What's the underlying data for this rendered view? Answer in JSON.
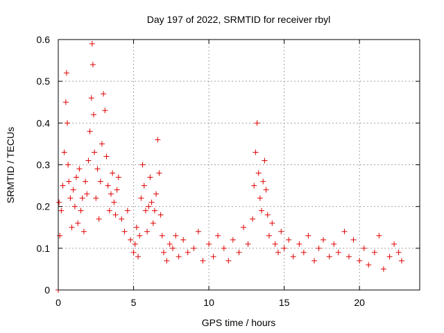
{
  "chart_data": {
    "type": "scatter",
    "title": "Day 197 of 2022, SRMTID for receiver rbyl",
    "xlabel": "GPS time / hours",
    "ylabel": "SRMTID / TECUs",
    "xlim": [
      0,
      24
    ],
    "ylim": [
      0,
      0.6
    ],
    "x_ticks": [
      0,
      5,
      10,
      15,
      20
    ],
    "y_ticks": [
      0,
      0.1,
      0.2,
      0.3,
      0.4,
      0.5,
      0.6
    ],
    "x_tick_labels": [
      "0",
      "5",
      "10",
      "15",
      "20"
    ],
    "y_tick_labels": [
      "0",
      "0.1",
      "0.2",
      "0.3",
      "0.4",
      "0.5",
      "0.6"
    ],
    "grid": true,
    "marker": "+",
    "colors": {
      "series": "#e00000",
      "grid": "#a0a0a0",
      "axis": "#000000"
    },
    "series": [
      {
        "name": "SRMTID",
        "x": [
          0.0,
          0.05,
          0.1,
          0.2,
          0.3,
          0.4,
          0.5,
          0.55,
          0.6,
          0.65,
          0.7,
          0.8,
          0.9,
          1.0,
          1.1,
          1.2,
          1.3,
          1.4,
          1.5,
          1.6,
          1.7,
          1.8,
          1.9,
          2.0,
          2.1,
          2.2,
          2.25,
          2.3,
          2.35,
          2.4,
          2.5,
          2.6,
          2.7,
          2.8,
          2.9,
          3.0,
          3.1,
          3.2,
          3.3,
          3.4,
          3.5,
          3.6,
          3.7,
          3.8,
          3.9,
          4.0,
          4.2,
          4.4,
          4.6,
          4.8,
          5.0,
          5.1,
          5.2,
          5.3,
          5.4,
          5.5,
          5.6,
          5.7,
          5.8,
          5.9,
          6.0,
          6.1,
          6.2,
          6.3,
          6.4,
          6.5,
          6.6,
          6.7,
          6.8,
          6.9,
          7.0,
          7.2,
          7.4,
          7.6,
          7.8,
          8.0,
          8.3,
          8.6,
          9.0,
          9.3,
          9.6,
          10.0,
          10.3,
          10.6,
          11.0,
          11.3,
          11.6,
          12.0,
          12.3,
          12.6,
          12.9,
          13.0,
          13.1,
          13.2,
          13.3,
          13.4,
          13.5,
          13.6,
          13.7,
          13.8,
          13.9,
          14.0,
          14.2,
          14.4,
          14.6,
          14.8,
          15.0,
          15.3,
          15.6,
          16.0,
          16.3,
          16.6,
          17.0,
          17.3,
          17.6,
          18.0,
          18.3,
          18.6,
          19.0,
          19.3,
          19.6,
          20.0,
          20.3,
          20.6,
          21.0,
          21.3,
          21.6,
          22.0,
          22.3,
          22.6,
          22.8
        ],
        "y": [
          0.0,
          0.21,
          0.13,
          0.19,
          0.25,
          0.33,
          0.45,
          0.52,
          0.4,
          0.3,
          0.26,
          0.22,
          0.15,
          0.24,
          0.2,
          0.27,
          0.16,
          0.29,
          0.19,
          0.22,
          0.14,
          0.26,
          0.23,
          0.31,
          0.38,
          0.46,
          0.59,
          0.54,
          0.42,
          0.33,
          0.22,
          0.29,
          0.17,
          0.26,
          0.35,
          0.47,
          0.43,
          0.32,
          0.25,
          0.19,
          0.23,
          0.28,
          0.21,
          0.18,
          0.24,
          0.27,
          0.17,
          0.14,
          0.19,
          0.12,
          0.09,
          0.11,
          0.15,
          0.08,
          0.13,
          0.22,
          0.3,
          0.25,
          0.19,
          0.14,
          0.2,
          0.27,
          0.21,
          0.16,
          0.19,
          0.23,
          0.36,
          0.28,
          0.18,
          0.13,
          0.09,
          0.07,
          0.11,
          0.1,
          0.13,
          0.08,
          0.12,
          0.09,
          0.1,
          0.14,
          0.07,
          0.11,
          0.08,
          0.13,
          0.1,
          0.07,
          0.12,
          0.09,
          0.15,
          0.11,
          0.17,
          0.25,
          0.33,
          0.4,
          0.28,
          0.22,
          0.19,
          0.26,
          0.31,
          0.24,
          0.18,
          0.13,
          0.16,
          0.11,
          0.09,
          0.14,
          0.1,
          0.12,
          0.08,
          0.11,
          0.09,
          0.13,
          0.07,
          0.1,
          0.12,
          0.08,
          0.11,
          0.09,
          0.14,
          0.08,
          0.12,
          0.07,
          0.1,
          0.06,
          0.09,
          0.13,
          0.05,
          0.08,
          0.11,
          0.09,
          0.07
        ]
      }
    ]
  }
}
